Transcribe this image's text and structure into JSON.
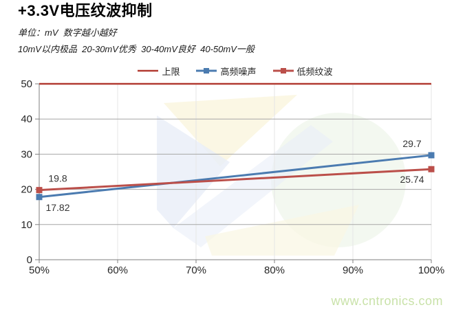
{
  "header": {
    "title": "+3.3V电压纹波抑制",
    "subtitle1": "单位：mV  数字越小越好",
    "subtitle2": "10mV以内极品  20-30mV优秀  30-40mV良好  40-50mV一般"
  },
  "watermark": "www.cntronics.com",
  "chart_data": {
    "type": "line",
    "title": "+3.3V电压纹波抑制",
    "unit": "mV",
    "categories": [
      "50%",
      "60%",
      "70%",
      "80%",
      "90%",
      "100%"
    ],
    "ylim": [
      0,
      50
    ],
    "ytick_step": 10,
    "yticks": [
      0,
      10,
      20,
      30,
      40,
      50
    ],
    "grid": true,
    "legend_position": "top-center",
    "colors": {
      "threshold": "#b23a31",
      "high_freq": "#4b7bb0",
      "low_freq": "#bb4f4a",
      "gridline": "#a6a6a6",
      "vertical_gridline": "#e6e6e6",
      "axis": "#7f7f7f",
      "axis_text": "#262626",
      "data_label": "#333333"
    },
    "series": [
      {
        "name": "上限",
        "kind": "threshold",
        "value": 50,
        "marker": "none",
        "color_key": "threshold"
      },
      {
        "name": "高频噪声",
        "kind": "line",
        "marker": "square",
        "color_key": "high_freq",
        "points": [
          {
            "x": "50%",
            "y": 17.82,
            "label": "17.82",
            "label_pos": "below"
          },
          {
            "x": "100%",
            "y": 29.7,
            "label": "29.7",
            "label_pos": "above"
          }
        ]
      },
      {
        "name": "低频纹波",
        "kind": "line",
        "marker": "square",
        "color_key": "low_freq",
        "points": [
          {
            "x": "50%",
            "y": 19.8,
            "label": "19.8",
            "label_pos": "above"
          },
          {
            "x": "100%",
            "y": 25.74,
            "label": "25.74",
            "label_pos": "below"
          }
        ]
      }
    ]
  }
}
